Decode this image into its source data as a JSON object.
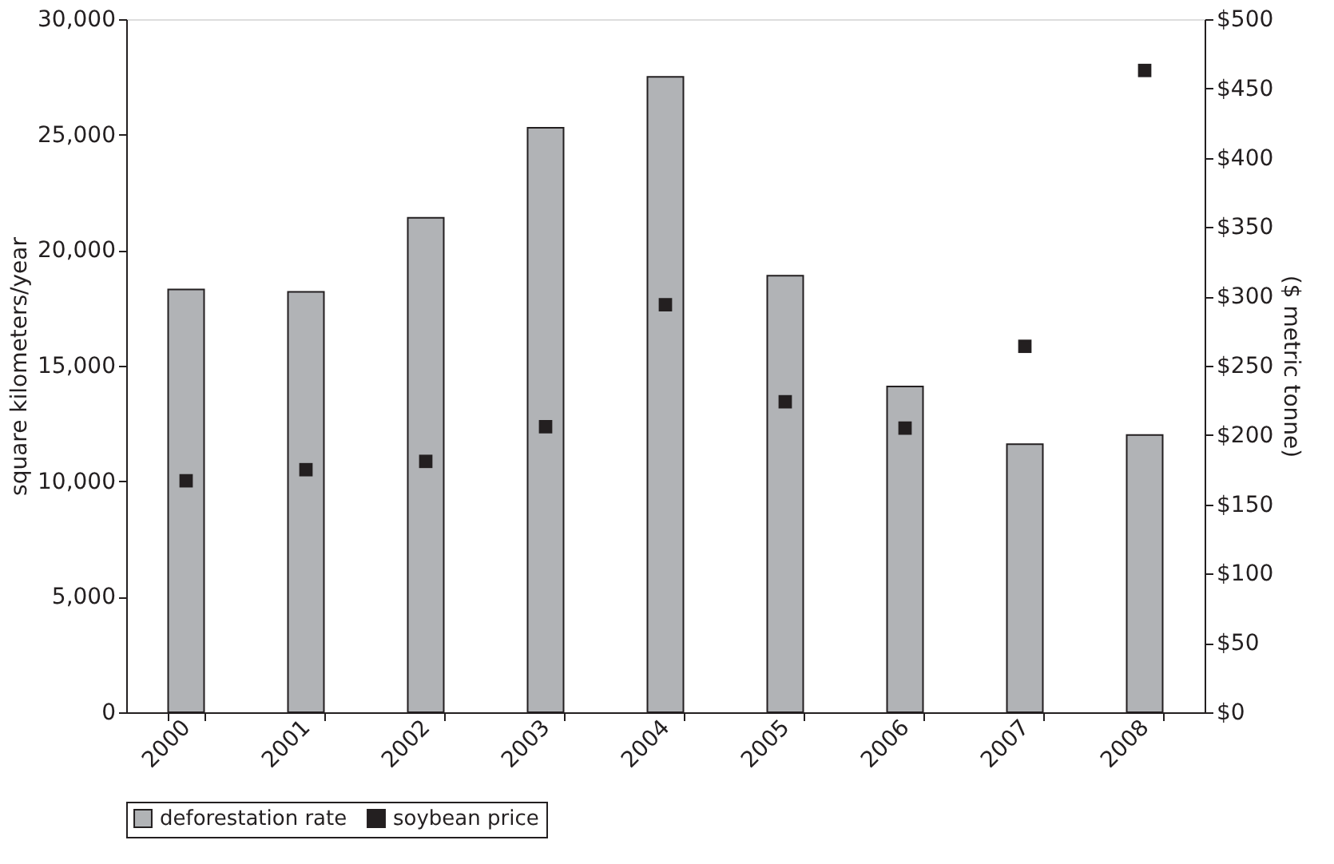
{
  "chart_data": {
    "type": "bar",
    "categories": [
      "2000",
      "2001",
      "2002",
      "2003",
      "2004",
      "2005",
      "2006",
      "2007",
      "2008"
    ],
    "series": [
      {
        "name": "deforestation rate",
        "color": "#b1b3b6",
        "values": [
          18300,
          18200,
          21400,
          25300,
          27500,
          18900,
          14100,
          11600,
          12000
        ]
      },
      {
        "name": "soybean price",
        "type": "scatter",
        "axis": "y2",
        "marker": "square",
        "color": "#231f20",
        "values": [
          167,
          175,
          181,
          206,
          294,
          224,
          205,
          264,
          463
        ]
      }
    ],
    "ylabel": "square kilometers/year",
    "y2label": "($ metric tonne)",
    "ylim": [
      0,
      30000
    ],
    "yticks": [
      0,
      {
        "value": 5000,
        "label": "5,000"
      },
      {
        "value": 10000,
        "label": "10,000"
      },
      {
        "value": 15000,
        "label": "15,000"
      },
      {
        "value": 20000,
        "label": "20,000"
      },
      {
        "value": 25000,
        "label": "25,000"
      },
      {
        "value": 30000,
        "label": "30,000"
      }
    ],
    "y2lim": [
      0,
      500
    ],
    "y2ticks": [
      {
        "value": 0,
        "label": "$0"
      },
      {
        "value": 50,
        "label": "$50"
      },
      {
        "value": 100,
        "label": "$100"
      },
      {
        "value": 150,
        "label": "$150"
      },
      {
        "value": 200,
        "label": "$200"
      },
      {
        "value": 250,
        "label": "$250"
      },
      {
        "value": 300,
        "label": "$300"
      },
      {
        "value": 350,
        "label": "$350"
      },
      {
        "value": 400,
        "label": "$400"
      },
      {
        "value": 450,
        "label": "$450"
      },
      {
        "value": 500,
        "label": "$500"
      }
    ],
    "grid": false,
    "legend": "bottom"
  }
}
